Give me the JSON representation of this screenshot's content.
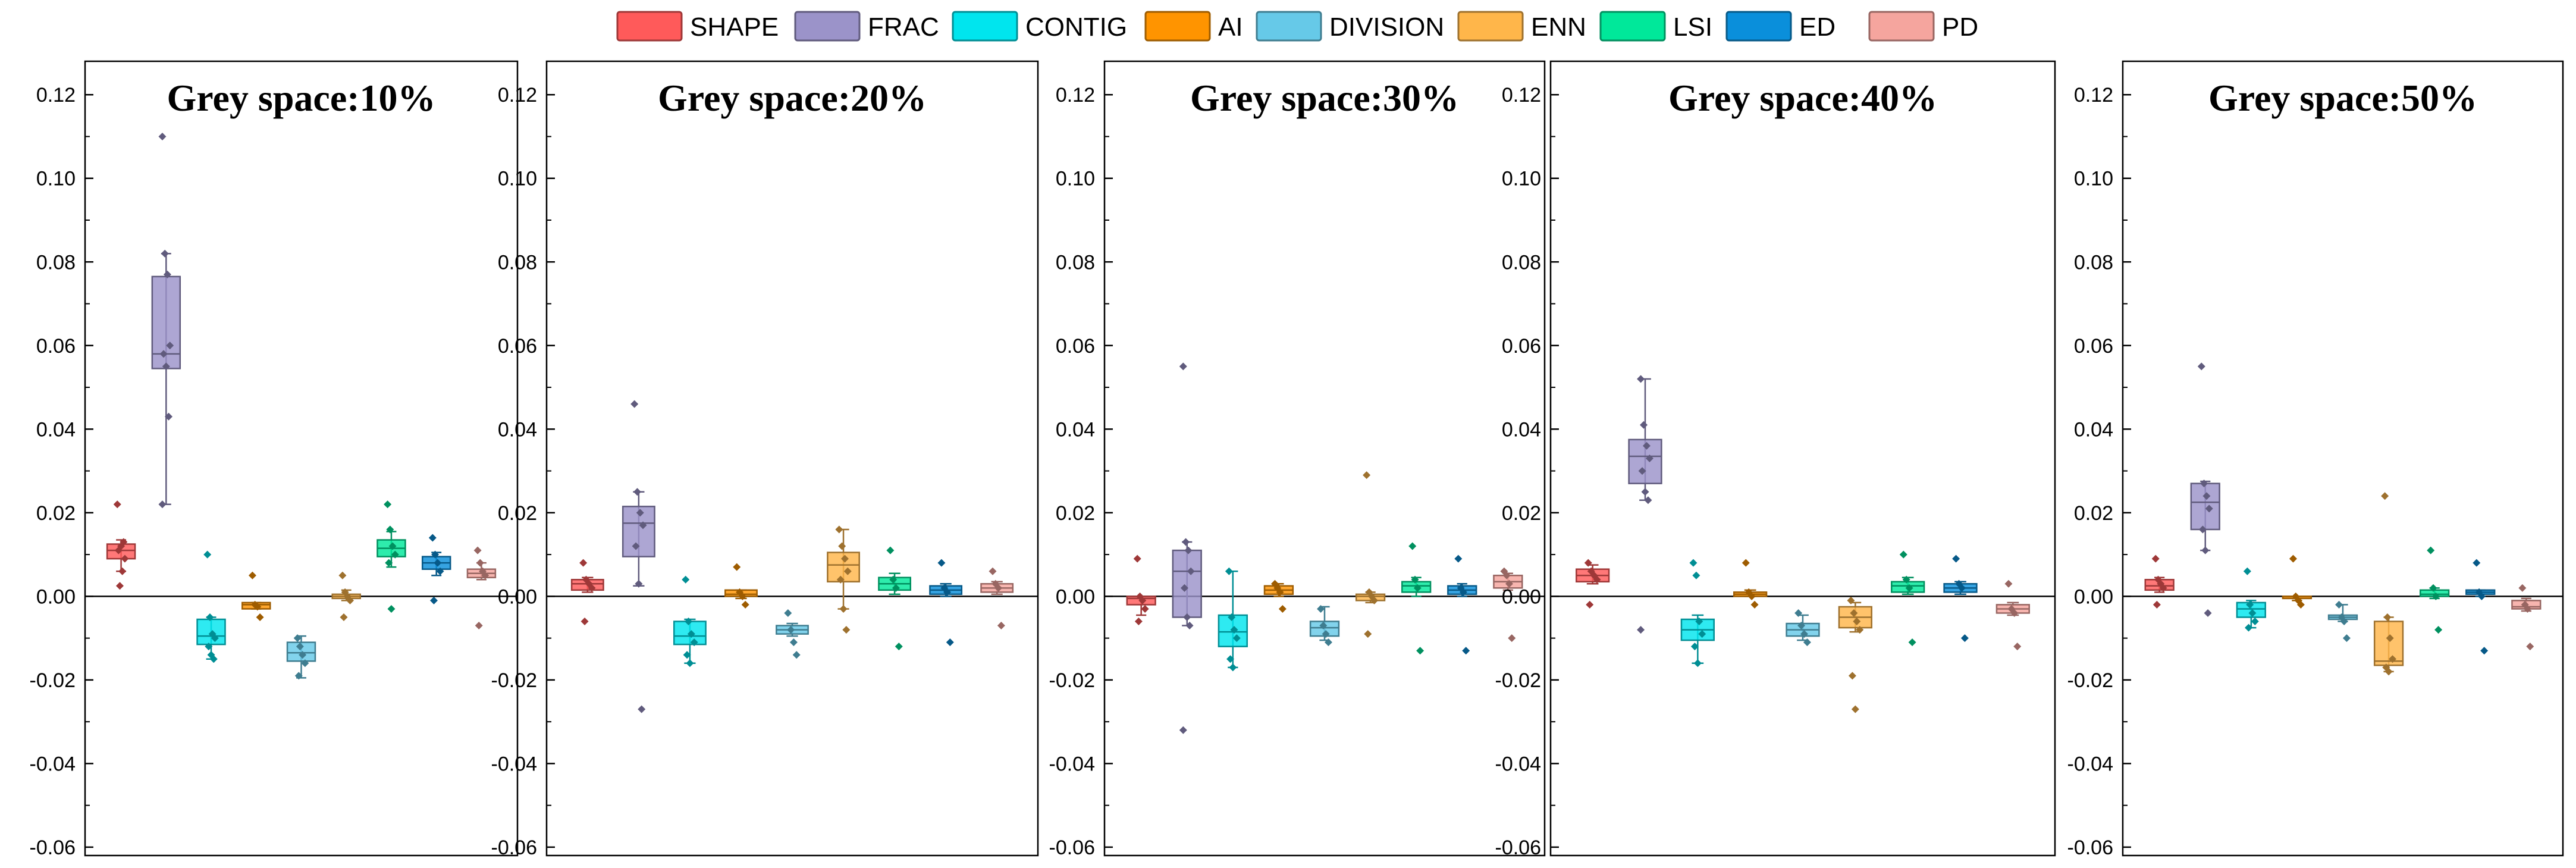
{
  "chart_data": {
    "type": "box",
    "ylim": [
      -0.062,
      0.128
    ],
    "yticks": [
      -0.06,
      -0.04,
      -0.02,
      0.0,
      0.02,
      0.04,
      0.06,
      0.08,
      0.1,
      0.12
    ],
    "ytick_labels": [
      "-0.06",
      "-0.04",
      "-0.02",
      "0.00",
      "0.02",
      "0.04",
      "0.06",
      "0.08",
      "0.10",
      "0.12"
    ],
    "legend": [
      {
        "name": "SHAPE",
        "color": "#FF5A5A"
      },
      {
        "name": "FRAC",
        "color": "#9B93C9"
      },
      {
        "name": "CONTIG",
        "color": "#00E5EE"
      },
      {
        "name": "AI",
        "color": "#FF9400"
      },
      {
        "name": "DIVISION",
        "color": "#66C9E8"
      },
      {
        "name": "ENN",
        "color": "#FFB64A"
      },
      {
        "name": "LSI",
        "color": "#00E89A"
      },
      {
        "name": "ED",
        "color": "#0A8FDB"
      },
      {
        "name": "PD",
        "color": "#F5A59E"
      }
    ],
    "panels": [
      {
        "title": "Grey space:10%",
        "boxes": [
          {
            "q1": 0.009,
            "median": 0.011,
            "q3": 0.0125,
            "min": 0.006,
            "max": 0.0135,
            "points": [
              0.022,
              0.0025,
              0.006,
              0.009,
              0.011,
              0.012,
              0.013
            ]
          },
          {
            "q1": 0.0545,
            "median": 0.058,
            "q3": 0.0765,
            "min": 0.022,
            "max": 0.082,
            "points": [
              0.11,
              0.082,
              0.077,
              0.06,
              0.058,
              0.055,
              0.043,
              0.022
            ]
          },
          {
            "q1": -0.0115,
            "median": -0.0095,
            "q3": -0.0055,
            "min": -0.015,
            "max": -0.005,
            "points": [
              0.01,
              -0.005,
              -0.009,
              -0.01,
              -0.012,
              -0.014,
              -0.015
            ]
          },
          {
            "q1": -0.003,
            "median": -0.002,
            "q3": -0.0015,
            "min": -0.003,
            "max": -0.0015,
            "points": [
              0.005,
              -0.002,
              -0.0025,
              -0.005
            ]
          },
          {
            "q1": -0.0155,
            "median": -0.0135,
            "q3": -0.011,
            "min": -0.0195,
            "max": -0.0095,
            "points": [
              -0.01,
              -0.012,
              -0.014,
              -0.016,
              -0.019
            ]
          },
          {
            "q1": -0.0005,
            "median": 0.0,
            "q3": 0.0005,
            "min": -0.001,
            "max": 0.0015,
            "points": [
              0.005,
              0.001,
              0.0,
              -0.001,
              -0.005
            ]
          },
          {
            "q1": 0.0095,
            "median": 0.0115,
            "q3": 0.0135,
            "min": 0.007,
            "max": 0.0155,
            "points": [
              0.022,
              0.016,
              0.012,
              0.01,
              0.008,
              -0.003
            ]
          },
          {
            "q1": 0.0065,
            "median": 0.008,
            "q3": 0.0095,
            "min": 0.005,
            "max": 0.0105,
            "points": [
              0.014,
              0.01,
              0.008,
              0.006,
              -0.001
            ]
          },
          {
            "q1": 0.0045,
            "median": 0.0055,
            "q3": 0.0065,
            "min": 0.004,
            "max": 0.008,
            "points": [
              0.011,
              0.008,
              0.006,
              0.005,
              -0.007
            ]
          }
        ]
      },
      {
        "title": "Grey space:20%",
        "boxes": [
          {
            "q1": 0.0015,
            "median": 0.003,
            "q3": 0.004,
            "min": 0.001,
            "max": 0.0045,
            "points": [
              0.008,
              0.004,
              0.003,
              0.002,
              -0.006
            ]
          },
          {
            "q1": 0.0095,
            "median": 0.0175,
            "q3": 0.0215,
            "min": 0.0025,
            "max": 0.025,
            "points": [
              0.046,
              0.025,
              0.02,
              0.017,
              0.012,
              0.003,
              -0.027
            ]
          },
          {
            "q1": -0.0115,
            "median": -0.0095,
            "q3": -0.006,
            "min": -0.016,
            "max": -0.0055,
            "points": [
              0.004,
              -0.006,
              -0.009,
              -0.011,
              -0.014,
              -0.016
            ]
          },
          {
            "q1": 0.0,
            "median": 0.0005,
            "q3": 0.0015,
            "min": -0.0005,
            "max": 0.0015,
            "points": [
              0.007,
              0.001,
              0.0,
              -0.002
            ]
          },
          {
            "q1": -0.009,
            "median": -0.008,
            "q3": -0.007,
            "min": -0.0095,
            "max": -0.0065,
            "points": [
              -0.004,
              -0.008,
              -0.011,
              -0.014
            ]
          },
          {
            "q1": 0.0035,
            "median": 0.0075,
            "q3": 0.0105,
            "min": -0.003,
            "max": 0.016,
            "points": [
              0.016,
              0.012,
              0.009,
              0.006,
              0.004,
              -0.003,
              -0.008
            ]
          },
          {
            "q1": 0.0015,
            "median": 0.003,
            "q3": 0.0045,
            "min": 0.0005,
            "max": 0.0055,
            "points": [
              0.011,
              0.004,
              0.002,
              -0.012
            ]
          },
          {
            "q1": 0.0005,
            "median": 0.0015,
            "q3": 0.0025,
            "min": 0.0,
            "max": 0.003,
            "points": [
              0.008,
              0.002,
              0.001,
              -0.011
            ]
          },
          {
            "q1": 0.001,
            "median": 0.002,
            "q3": 0.003,
            "min": 0.0005,
            "max": 0.0035,
            "points": [
              0.006,
              0.003,
              0.002,
              -0.007
            ]
          }
        ]
      },
      {
        "title": "Grey space:30%",
        "boxes": [
          {
            "q1": -0.002,
            "median": -0.0005,
            "q3": 0.0,
            "min": -0.0045,
            "max": 0.0,
            "points": [
              0.009,
              0.0,
              -0.001,
              -0.003,
              -0.006
            ]
          },
          {
            "q1": -0.005,
            "median": 0.006,
            "q3": 0.011,
            "min": -0.007,
            "max": 0.013,
            "points": [
              0.055,
              0.013,
              0.011,
              0.006,
              0.002,
              -0.005,
              -0.007,
              -0.032
            ]
          },
          {
            "q1": -0.012,
            "median": -0.0085,
            "q3": -0.0045,
            "min": -0.017,
            "max": 0.006,
            "points": [
              0.006,
              -0.005,
              -0.008,
              -0.01,
              -0.015,
              -0.017
            ]
          },
          {
            "q1": 0.0005,
            "median": 0.0015,
            "q3": 0.0025,
            "min": 0.0,
            "max": 0.003,
            "points": [
              0.003,
              0.002,
              0.001,
              -0.003
            ]
          },
          {
            "q1": -0.0095,
            "median": -0.0075,
            "q3": -0.006,
            "min": -0.0105,
            "max": -0.0025,
            "points": [
              -0.003,
              -0.007,
              -0.009,
              -0.011
            ]
          },
          {
            "q1": -0.001,
            "median": 0.0,
            "q3": 0.0005,
            "min": -0.0015,
            "max": 0.001,
            "points": [
              0.029,
              0.001,
              0.0,
              -0.001,
              -0.009
            ]
          },
          {
            "q1": 0.001,
            "median": 0.0025,
            "q3": 0.0035,
            "min": 0.0,
            "max": 0.0045,
            "points": [
              0.012,
              0.004,
              0.002,
              -0.013
            ]
          },
          {
            "q1": 0.0005,
            "median": 0.0015,
            "q3": 0.0025,
            "min": 0.0,
            "max": 0.003,
            "points": [
              0.009,
              0.002,
              0.001,
              -0.013
            ]
          },
          {
            "q1": 0.002,
            "median": 0.0035,
            "q3": 0.005,
            "min": 0.0015,
            "max": 0.0055,
            "points": [
              0.006,
              0.005,
              0.003,
              -0.01
            ]
          }
        ]
      },
      {
        "title": "Grey space:40%",
        "boxes": [
          {
            "q1": 0.0035,
            "median": 0.005,
            "q3": 0.0065,
            "min": 0.003,
            "max": 0.0075,
            "points": [
              0.008,
              0.006,
              0.005,
              0.004,
              -0.002
            ]
          },
          {
            "q1": 0.027,
            "median": 0.0335,
            "q3": 0.0375,
            "min": 0.023,
            "max": 0.052,
            "points": [
              0.052,
              0.041,
              0.036,
              0.033,
              0.03,
              0.025,
              0.023,
              -0.008
            ]
          },
          {
            "q1": -0.0105,
            "median": -0.008,
            "q3": -0.0055,
            "min": -0.016,
            "max": -0.0045,
            "points": [
              0.008,
              0.005,
              -0.006,
              -0.009,
              -0.012,
              -0.016
            ]
          },
          {
            "q1": 0.0,
            "median": 0.0005,
            "q3": 0.001,
            "min": 0.0,
            "max": 0.0015,
            "points": [
              0.008,
              0.001,
              0.0,
              -0.002
            ]
          },
          {
            "q1": -0.0095,
            "median": -0.008,
            "q3": -0.0065,
            "min": -0.0105,
            "max": -0.0045,
            "points": [
              -0.004,
              -0.007,
              -0.009,
              -0.011
            ]
          },
          {
            "q1": -0.0075,
            "median": -0.005,
            "q3": -0.0025,
            "min": -0.0085,
            "max": -0.0015,
            "points": [
              -0.001,
              -0.004,
              -0.006,
              -0.008,
              -0.019,
              -0.027
            ]
          },
          {
            "q1": 0.001,
            "median": 0.0025,
            "q3": 0.0035,
            "min": 0.0005,
            "max": 0.0045,
            "points": [
              0.01,
              0.004,
              0.002,
              -0.011
            ]
          },
          {
            "q1": 0.001,
            "median": 0.002,
            "q3": 0.003,
            "min": 0.0005,
            "max": 0.0035,
            "points": [
              0.009,
              0.003,
              0.002,
              -0.01
            ]
          },
          {
            "q1": -0.004,
            "median": -0.003,
            "q3": -0.002,
            "min": -0.0045,
            "max": -0.0015,
            "points": [
              0.003,
              -0.003,
              -0.004,
              -0.012
            ]
          }
        ]
      },
      {
        "title": "Grey space:50%",
        "boxes": [
          {
            "q1": 0.0015,
            "median": 0.0025,
            "q3": 0.004,
            "min": 0.001,
            "max": 0.0045,
            "points": [
              0.009,
              0.004,
              0.003,
              0.002,
              -0.002
            ]
          },
          {
            "q1": 0.016,
            "median": 0.0225,
            "q3": 0.027,
            "min": 0.011,
            "max": 0.0275,
            "points": [
              0.055,
              0.027,
              0.024,
              0.021,
              0.016,
              0.011,
              -0.004
            ]
          },
          {
            "q1": -0.005,
            "median": -0.003,
            "q3": -0.0015,
            "min": -0.0075,
            "max": -0.001,
            "points": [
              0.006,
              -0.002,
              -0.004,
              -0.006,
              -0.0075
            ]
          },
          {
            "q1": -0.0005,
            "median": 0.0,
            "q3": 0.0,
            "min": -0.001,
            "max": 0.0,
            "points": [
              0.009,
              0.0,
              -0.001,
              -0.002
            ]
          },
          {
            "q1": -0.0055,
            "median": -0.005,
            "q3": -0.0045,
            "min": -0.006,
            "max": -0.002,
            "points": [
              -0.002,
              -0.005,
              -0.006,
              -0.01
            ]
          },
          {
            "q1": -0.0165,
            "median": -0.0155,
            "q3": -0.006,
            "min": -0.018,
            "max": -0.005,
            "points": [
              0.024,
              -0.005,
              -0.01,
              -0.015,
              -0.017,
              -0.018
            ]
          },
          {
            "q1": 0.0,
            "median": 0.0005,
            "q3": 0.0015,
            "min": -0.0005,
            "max": 0.002,
            "points": [
              0.011,
              0.002,
              0.0,
              -0.008
            ]
          },
          {
            "q1": 0.0005,
            "median": 0.001,
            "q3": 0.0015,
            "min": 0.0,
            "max": 0.0015,
            "points": [
              0.008,
              0.001,
              0.0,
              -0.013
            ]
          },
          {
            "q1": -0.003,
            "median": -0.0025,
            "q3": -0.001,
            "min": -0.0035,
            "max": -0.0005,
            "points": [
              0.002,
              -0.002,
              -0.003,
              -0.012
            ]
          }
        ]
      }
    ]
  }
}
